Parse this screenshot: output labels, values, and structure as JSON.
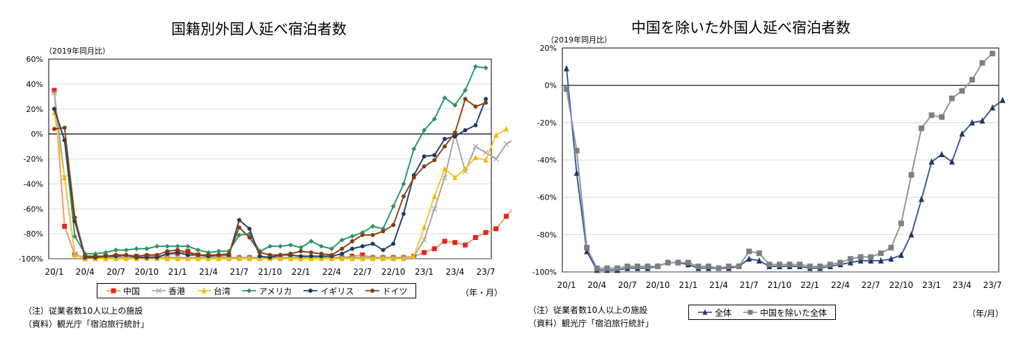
{
  "left": {
    "title": "国籍別外国人延べ宿泊者数",
    "unit_label": "（2019年同月比）",
    "x_unit_label": "（年・月）",
    "notes": [
      "（注）従業者数10人以上の施設",
      "（資料）観光庁「宿泊旅行統計」"
    ]
  },
  "right": {
    "title": "中国を除いた外国人延べ宿泊者数",
    "unit_label": "（2019年同月比）",
    "x_unit_label": "（年/月）",
    "notes": [
      "（注）従業者数10人以上の施設",
      "（資料）観光庁「宿泊旅行統計」"
    ]
  },
  "chart_data": [
    {
      "type": "line",
      "title": "国籍別外国人延べ宿泊者数",
      "ylabel": "（2019年同月比）",
      "xlabel": "（年・月）",
      "ylim": [
        -100,
        60
      ],
      "yticks": [
        60,
        40,
        20,
        0,
        -20,
        -40,
        -60,
        -80,
        -100
      ],
      "ytick_labels": [
        "60%",
        "40%",
        "20%",
        "0%",
        "-20%",
        "-40%",
        "-60%",
        "-80%",
        "-100%"
      ],
      "xtick_labels": [
        "20/1",
        "20/4",
        "20/7",
        "20/10",
        "21/1",
        "21/4",
        "21/7",
        "21/10",
        "22/1",
        "22/4",
        "22/7",
        "22/10",
        "23/1",
        "23/4",
        "23/7"
      ],
      "grid": true,
      "legend_position": "bottom",
      "series": [
        {
          "name": "中国",
          "color": "#e8231a",
          "line": "#e39f7a",
          "marker": "square",
          "values": [
            35,
            -74,
            -97,
            -99,
            -99,
            -98,
            -98,
            -99,
            -98,
            -98,
            -98,
            -97,
            -96,
            -94,
            -97,
            -98,
            -98,
            -99,
            -99,
            -99,
            -99,
            -99,
            -99,
            -99,
            -99,
            -99,
            -99,
            -99,
            -99,
            -98,
            -97,
            -99,
            -99,
            -99,
            -99,
            -98,
            -95,
            -92,
            -86,
            -87,
            -89,
            -83,
            -79,
            -76,
            -66,
            -56
          ]
        },
        {
          "name": "香港",
          "color": "#a6a6a6",
          "line": "#a6a6a6",
          "marker": "x",
          "values": [
            33,
            -35,
            -96,
            -100,
            -100,
            -99,
            -99,
            -99,
            -99,
            -99,
            -99,
            -99,
            -99,
            -99,
            -99,
            -99,
            -99,
            -99,
            -99,
            -99,
            -99,
            -99,
            -99,
            -99,
            -99,
            -99,
            -99,
            -99,
            -99,
            -99,
            -99,
            -99,
            -99,
            -99,
            -99,
            -98,
            -85,
            -60,
            -35,
            0,
            -30,
            -10,
            -15,
            -20,
            -8,
            -3
          ]
        },
        {
          "name": "台湾",
          "color": "#f5b800",
          "line": "#f5c730",
          "marker": "triangle",
          "values": [
            17,
            -35,
            -97,
            -100,
            -100,
            -100,
            -100,
            -100,
            -100,
            -100,
            -100,
            -100,
            -100,
            -100,
            -100,
            -100,
            -100,
            -100,
            -100,
            -100,
            -100,
            -100,
            -100,
            -100,
            -100,
            -100,
            -100,
            -100,
            -100,
            -100,
            -100,
            -100,
            -100,
            -100,
            -100,
            -98,
            -75,
            -50,
            -28,
            -35,
            -28,
            -19,
            -21,
            -1,
            4
          ]
        },
        {
          "name": "アメリカ",
          "color": "#3b8a6e",
          "line": "#1e9e66",
          "marker": "diamond",
          "values": [
            20,
            -5,
            -82,
            -96,
            -96,
            -95,
            -93,
            -93,
            -92,
            -92,
            -90,
            -90,
            -90,
            -90,
            -93,
            -95,
            -94,
            -94,
            -81,
            -80,
            -94,
            -90,
            -90,
            -89,
            -91,
            -86,
            -90,
            -92,
            -85,
            -82,
            -79,
            -74,
            -76,
            -58,
            -40,
            -12,
            3,
            12,
            29,
            23,
            35,
            54,
            53
          ]
        },
        {
          "name": "イギリス",
          "color": "#1f3864",
          "line": "#243f73",
          "marker": "circle",
          "values": [
            20,
            -5,
            -70,
            -99,
            -99,
            -98,
            -98,
            -97,
            -99,
            -99,
            -99,
            -96,
            -95,
            -97,
            -97,
            -98,
            -97,
            -97,
            -69,
            -76,
            -98,
            -99,
            -97,
            -97,
            -98,
            -98,
            -98,
            -98,
            -96,
            -92,
            -90,
            -88,
            -93,
            -88,
            -64,
            -33,
            -18,
            -17,
            -4,
            -2,
            3,
            7,
            28
          ]
        },
        {
          "name": "ドイツ",
          "color": "#843c0c",
          "line": "#8b4513",
          "marker": "circle",
          "values": [
            4,
            5,
            -67,
            -98,
            -98,
            -98,
            -97,
            -97,
            -98,
            -97,
            -97,
            -94,
            -93,
            -95,
            -97,
            -97,
            -97,
            -96,
            -75,
            -83,
            -95,
            -97,
            -97,
            -96,
            -94,
            -95,
            -96,
            -97,
            -92,
            -86,
            -81,
            -81,
            -78,
            -73,
            -50,
            -35,
            -26,
            -21,
            -10,
            1,
            28,
            22,
            25
          ]
        }
      ]
    },
    {
      "type": "line",
      "title": "中国を除いた外国人延べ宿泊者数",
      "ylabel": "（2019年同月比）",
      "xlabel": "（年/月）",
      "ylim": [
        -100,
        20
      ],
      "yticks": [
        20,
        0,
        -20,
        -40,
        -60,
        -80,
        -100
      ],
      "ytick_labels": [
        "20%",
        "0%",
        "-20%",
        "-40%",
        "-60%",
        "-80%",
        "-100%"
      ],
      "xtick_labels": [
        "20/1",
        "20/4",
        "20/7",
        "20/10",
        "21/1",
        "21/4",
        "21/7",
        "21/10",
        "22/1",
        "22/4",
        "22/7",
        "22/10",
        "23/1",
        "23/4",
        "23/7"
      ],
      "grid": true,
      "legend_position": "bottom",
      "series": [
        {
          "name": "全体",
          "color": "#1f3864",
          "line": "#3b5a9a",
          "marker": "triangle",
          "values": [
            9,
            -47,
            -89,
            -99,
            -99,
            -99,
            -98,
            -98,
            -98,
            -97,
            -95,
            -95,
            -96,
            -98,
            -98,
            -98,
            -98,
            -97,
            -93,
            -94,
            -97,
            -97,
            -97,
            -97,
            -98,
            -98,
            -97,
            -96,
            -95,
            -94,
            -94,
            -94,
            -93,
            -91,
            -80,
            -61,
            -41,
            -37,
            -41,
            -26,
            -20,
            -19,
            -12,
            -8
          ]
        },
        {
          "name": "中国を除いた全体",
          "color": "#7f7f7f",
          "line": "#8c96a8",
          "marker": "square",
          "values": [
            -2,
            -35,
            -87,
            -98,
            -98,
            -98,
            -97,
            -97,
            -97,
            -97,
            -95,
            -95,
            -95,
            -97,
            -97,
            -98,
            -97,
            -97,
            -89,
            -90,
            -96,
            -96,
            -96,
            -96,
            -97,
            -97,
            -96,
            -95,
            -93,
            -92,
            -92,
            -90,
            -87,
            -74,
            -48,
            -23,
            -16,
            -17,
            -7,
            -3,
            3,
            12,
            17
          ]
        }
      ]
    }
  ]
}
